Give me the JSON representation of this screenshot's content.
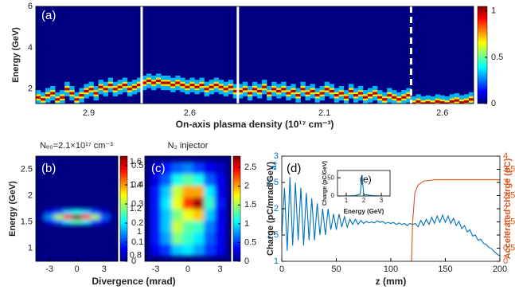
{
  "chart_data": [
    {
      "type": "waterfall",
      "panel_label": "(a)",
      "ylabel": "Energy (GeV)",
      "xlabel": "On-axis plasma density (10¹⁷ cm⁻³)",
      "ylim": [
        1.3,
        6
      ],
      "yticks": [
        2,
        4,
        6
      ],
      "clim": [
        0,
        1.05
      ],
      "cticks": [
        0,
        0.5,
        1
      ],
      "colormap": "jet",
      "separator_styles": [
        "solid",
        "solid",
        "dashed"
      ],
      "groups": [
        {
          "label": "2.9",
          "values": [
            1.6,
            1.5,
            1.7,
            1.8,
            1.5,
            1.6,
            2.0,
            1.8,
            1.5,
            1.7,
            1.9,
            2.0,
            1.8,
            2.1,
            2.0,
            2.2,
            2.0,
            2.1,
            2.2,
            2.0,
            2.1,
            2.2
          ]
        },
        {
          "label": "2.6",
          "values": [
            2.3,
            2.4,
            2.3,
            2.4,
            2.3,
            2.3,
            2.2,
            2.3,
            2.2,
            2.1,
            2.2,
            2.1,
            2.2,
            2.0,
            2.1,
            2.2,
            2.1,
            2.0,
            2.1,
            1.9
          ]
        },
        {
          "label": "2.1",
          "values": [
            1.9,
            2.0,
            1.8,
            2.0,
            1.9,
            2.1,
            1.8,
            2.0,
            1.9,
            2.0,
            1.8,
            1.9,
            1.7,
            2.0,
            1.8,
            1.9,
            1.7,
            1.8,
            2.0,
            1.9,
            1.7,
            1.8,
            1.6,
            1.9,
            1.7,
            1.8,
            1.6,
            1.7,
            1.8,
            1.6,
            1.5,
            1.7,
            1.6,
            1.5,
            1.6,
            1.7
          ]
        },
        {
          "label": "2.6",
          "values": [
            1.3,
            1.4,
            1.3,
            1.35,
            1.3,
            1.4,
            1.35,
            1.3,
            1.4,
            1.45,
            1.35,
            1.4,
            1.5
          ]
        }
      ]
    },
    {
      "type": "heatmap",
      "panel_label": "(b)",
      "title": "Nₑ₀=2.1×10¹⁷ cm⁻³",
      "ylabel": "Energy (GeV)",
      "xlabel": "Divergence (mrad)",
      "xlim": [
        -4.5,
        4.5
      ],
      "xticks": [
        -3,
        0,
        3
      ],
      "ylim": [
        0.75,
        2.75
      ],
      "yticks": [
        1,
        1.5,
        2,
        2.5
      ],
      "clim": [
        0,
        0.55
      ],
      "cticks": [
        0,
        0.1,
        0.2,
        0.3,
        0.4,
        0.5
      ],
      "colormap": "jet",
      "x": [
        -4,
        -3,
        -2,
        -1,
        0,
        1,
        2,
        3,
        4
      ],
      "y": [
        1.5,
        1.6,
        1.7
      ],
      "z": [
        [
          0,
          0.05,
          0.12,
          0.2,
          0.25,
          0.2,
          0.1,
          0.05,
          0
        ],
        [
          0.02,
          0.15,
          0.3,
          0.45,
          0.55,
          0.45,
          0.3,
          0.12,
          0.02
        ],
        [
          0,
          0.05,
          0.1,
          0.18,
          0.22,
          0.18,
          0.1,
          0.04,
          0
        ]
      ]
    },
    {
      "type": "heatmap",
      "panel_label": "(c)",
      "title": "N₂ injector",
      "xlim": [
        -4,
        4
      ],
      "xticks": [
        -3,
        0,
        3
      ],
      "ylim": [
        0.75,
        1.65
      ],
      "yticks": [
        0.8,
        1,
        1.2,
        1.4,
        1.6
      ],
      "clim": [
        0,
        2.8
      ],
      "cticks": [
        0,
        0.5,
        1,
        1.5,
        2,
        2.5
      ],
      "colormap": "jet",
      "x": [
        -3,
        -2,
        -1,
        0,
        1,
        2,
        3
      ],
      "y": [
        0.85,
        0.95,
        1.05,
        1.15,
        1.25,
        1.35,
        1.45,
        1.55
      ],
      "z": [
        [
          0.3,
          0.5,
          0.9,
          1.0,
          0.8,
          0.5,
          0.3
        ],
        [
          0.4,
          0.8,
          1.4,
          1.2,
          1.0,
          0.6,
          0.3
        ],
        [
          0.4,
          0.9,
          1.6,
          1.3,
          1.2,
          0.7,
          0.3
        ],
        [
          0.4,
          0.9,
          1.4,
          1.7,
          1.9,
          0.9,
          0.3
        ],
        [
          0.4,
          1.0,
          1.7,
          2.3,
          2.7,
          1.2,
          0.4
        ],
        [
          0.4,
          0.9,
          1.6,
          2.0,
          2.0,
          1.0,
          0.3
        ],
        [
          0.3,
          0.6,
          1.1,
          1.3,
          1.1,
          0.6,
          0.3
        ],
        [
          0.2,
          0.4,
          0.6,
          0.7,
          0.5,
          0.3,
          0.2
        ]
      ]
    },
    {
      "type": "line",
      "panel_label": "(d)",
      "xlabel": "z (mm)",
      "ylabel": "Charge (pC/mrad/GeV)",
      "ylabel_overlay": "a₀",
      "y2label": "Accelerated charge (pC)",
      "xlim": [
        0,
        200
      ],
      "xticks": [
        0,
        50,
        100,
        150,
        200
      ],
      "ylim": [
        1,
        3
      ],
      "yticks": [
        1,
        1.5,
        2,
        2.5,
        3
      ],
      "y2lim": [
        0,
        4
      ],
      "y2ticks": [
        0,
        0.5,
        1,
        1.5,
        2,
        2.5,
        3,
        3.5,
        4
      ],
      "series": [
        {
          "color": "#0072bd",
          "x": [
            0,
            2.5,
            5,
            7.5,
            10,
            12.5,
            15,
            17.5,
            20,
            22.5,
            25,
            27.5,
            30,
            32.5,
            35,
            37.5,
            40,
            42.5,
            45,
            47.5,
            50,
            52.5,
            55,
            57.5,
            60,
            62.5,
            65,
            67.5,
            70,
            72.5,
            75,
            77.5,
            80,
            82.5,
            85,
            87.5,
            90,
            92.5,
            95,
            97.5,
            100,
            102.5,
            105,
            107.5,
            110,
            112.5,
            115,
            117.5,
            120,
            122.5,
            125,
            127.5,
            130,
            132.5,
            135,
            137.5,
            140,
            142.5,
            145,
            147.5,
            150,
            152.5,
            155,
            157.5,
            160,
            162.5,
            165,
            167.5,
            170,
            172.5,
            175,
            177.5,
            180,
            182.5,
            185,
            187.5,
            190,
            192.5,
            195,
            197.5,
            200
          ],
          "values": [
            1.5,
            2.4,
            1.2,
            2.6,
            1.3,
            2.5,
            1.4,
            2.4,
            1.3,
            2.3,
            1.4,
            2.2,
            1.4,
            2.1,
            1.5,
            2.0,
            1.5,
            2.0,
            1.6,
            1.9,
            1.6,
            1.9,
            1.65,
            1.85,
            1.65,
            1.8,
            1.7,
            1.8,
            1.7,
            1.78,
            1.72,
            1.76,
            1.73,
            1.75,
            1.73,
            1.77,
            1.74,
            1.76,
            1.72,
            1.74,
            1.72,
            1.74,
            1.7,
            1.73,
            1.7,
            1.72,
            1.68,
            1.72,
            1.7,
            1.72,
            1.66,
            1.78,
            1.68,
            1.8,
            1.7,
            1.84,
            1.72,
            1.86,
            1.74,
            1.88,
            1.74,
            1.86,
            1.72,
            1.82,
            1.68,
            1.76,
            1.62,
            1.68,
            1.56,
            1.6,
            1.48,
            1.5,
            1.4,
            1.42,
            1.34,
            1.32,
            1.26,
            1.24,
            1.18,
            1.14,
            1.1
          ]
        },
        {
          "color": "#d95319",
          "axis": "y2",
          "x": [
            0,
            119,
            120,
            122,
            125,
            130,
            140,
            150,
            200
          ],
          "values": [
            0,
            0,
            1.5,
            2.6,
            2.9,
            3.05,
            3.1,
            3.1,
            3.1
          ]
        }
      ]
    },
    {
      "type": "line",
      "panel_label": "(e)",
      "xlabel": "Energy (GeV)",
      "ylabel": "Charge (pC/GeV)",
      "xlim": [
        0.5,
        3.5
      ],
      "xticks": [
        1,
        2,
        3
      ],
      "ylim": [
        0,
        70
      ],
      "yticks": [
        0,
        50
      ],
      "series": [
        {
          "color": "#0072bd",
          "x": [
            0.5,
            1,
            1.5,
            1.8,
            1.85,
            1.9,
            1.95,
            2.0,
            2.5,
            3,
            3.5
          ],
          "values": [
            0,
            0,
            1,
            5,
            30,
            58,
            30,
            4,
            1,
            0,
            0
          ]
        }
      ]
    }
  ]
}
